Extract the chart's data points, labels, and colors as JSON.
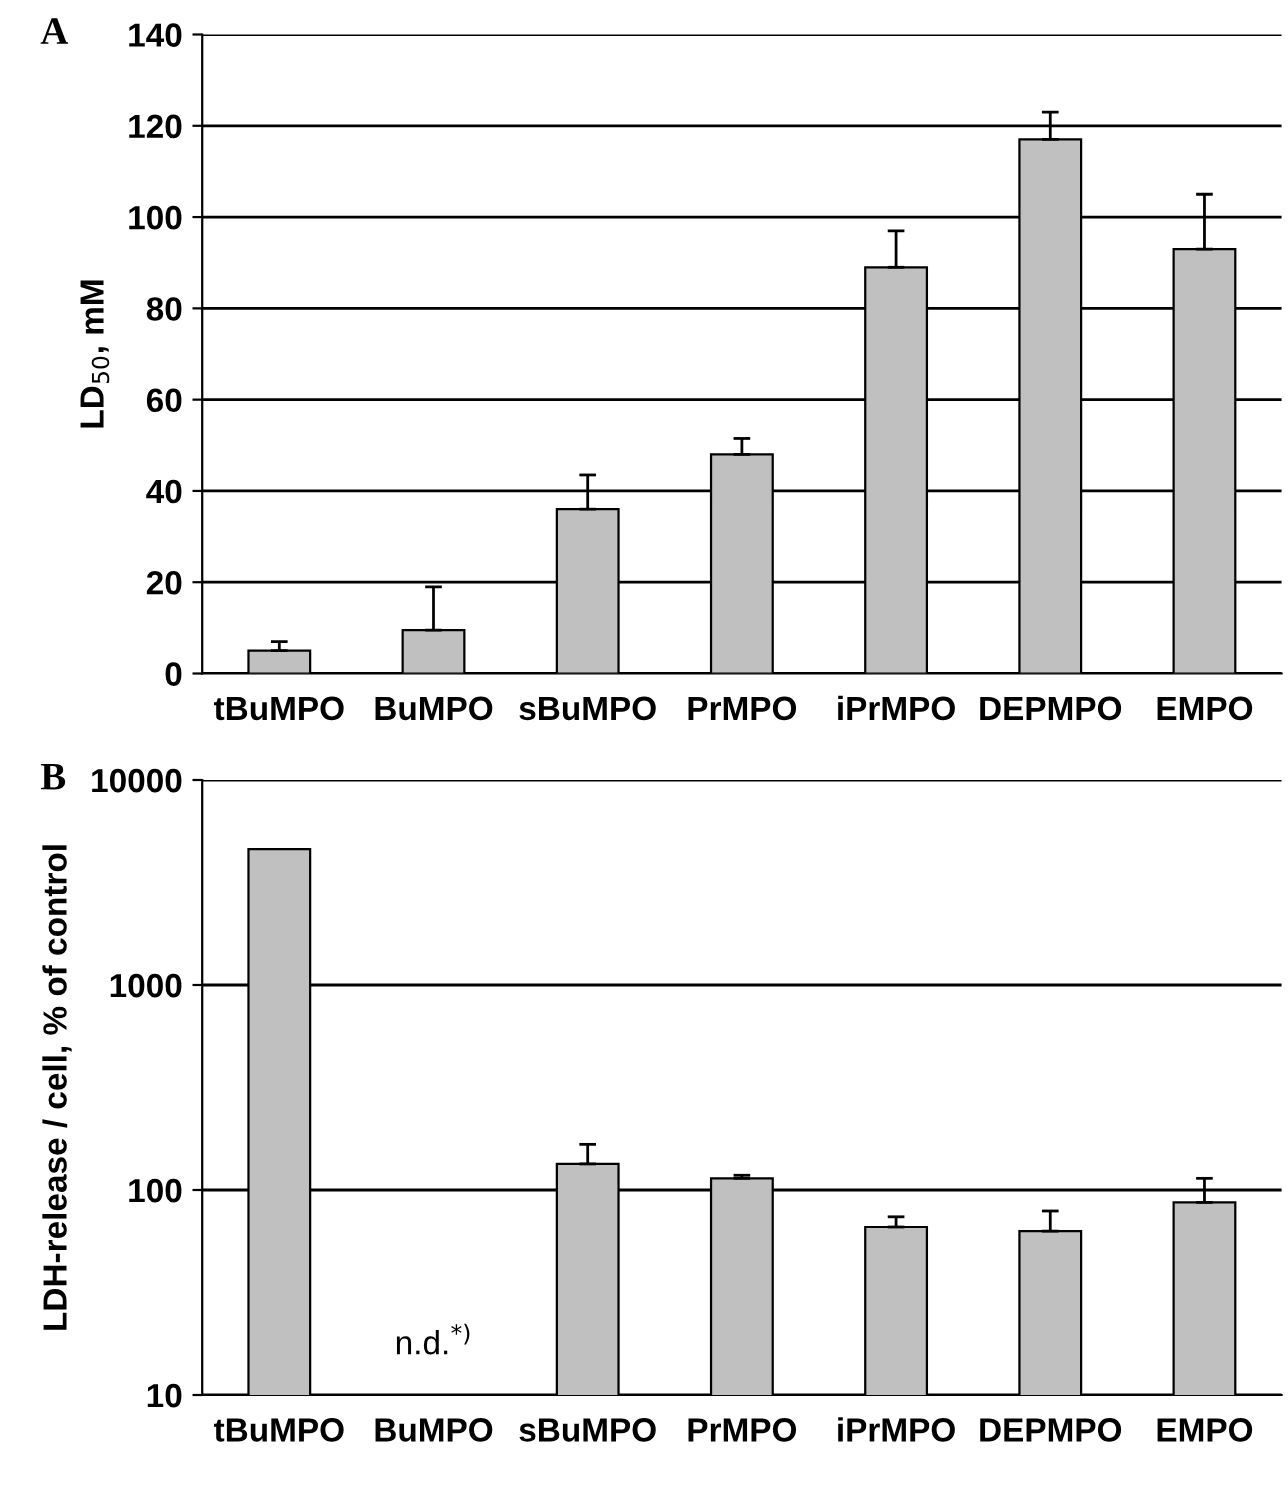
{
  "chart_data": [
    {
      "type": "bar",
      "title": "A",
      "ylabel": "LD$_{50}$, mM",
      "categories": [
        "tBuMPO",
        "BuMPO",
        "sBuMPO",
        "PrMPO",
        "iPrMPO",
        "DEPMPO",
        "EMPO"
      ],
      "values": [
        5,
        9.5,
        36,
        48,
        89,
        117,
        93
      ],
      "errors": [
        [
          5,
          7
        ],
        [
          9.5,
          19
        ],
        [
          36,
          43.5
        ],
        [
          48,
          51.5
        ],
        [
          89,
          97
        ],
        [
          117,
          123
        ],
        [
          93,
          105
        ]
      ],
      "color": "#c0c0c0",
      "ylim": [
        0,
        140
      ],
      "yticks": [
        0,
        20,
        40,
        60,
        80,
        100,
        120,
        140
      ],
      "grid": "y"
    },
    {
      "type": "bar",
      "title": "B",
      "ylabel": "LDH-release / cell, % of control",
      "categories": [
        "tBuMPO",
        "BuMPO",
        "sBuMPO",
        "PrMPO",
        "iPrMPO",
        "DEPMPO",
        "EMPO"
      ],
      "values": [
        4600,
        null,
        134,
        114,
        66,
        63,
        87
      ],
      "errors": [
        null,
        null,
        [
          134,
          167
        ],
        [
          114,
          118
        ],
        [
          66,
          74
        ],
        [
          63,
          79
        ],
        [
          87,
          114
        ]
      ],
      "color": "#c0c0c0",
      "log": true,
      "ylim": [
        10,
        10000
      ],
      "yticks": [
        10,
        100,
        1000,
        10000
      ],
      "grid": "y",
      "annotations": [
        "n.d.$^{*)}$"
      ]
    }
  ]
}
